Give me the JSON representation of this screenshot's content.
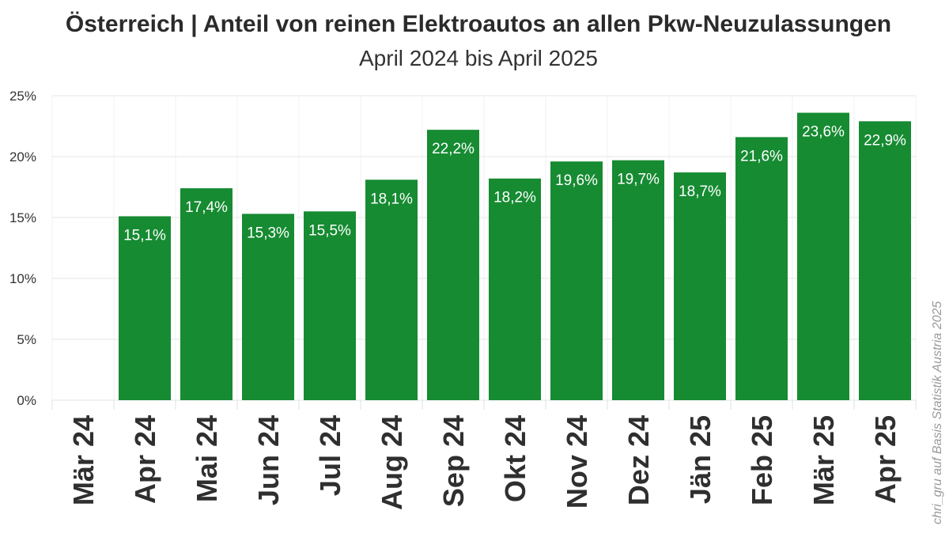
{
  "chart_data": {
    "type": "bar",
    "title": "Österreich | Anteil von reinen Elektroautos an allen Pkw-Neuzulassungen",
    "subtitle": "April 2024 bis April 2025",
    "categories": [
      "Mär 24",
      "Apr 24",
      "Mai 24",
      "Jun 24",
      "Jul 24",
      "Aug 24",
      "Sep 24",
      "Okt 24",
      "Nov 24",
      "Dez 24",
      "Jän 25",
      "Feb 25",
      "Mär 25",
      "Apr 25"
    ],
    "values": [
      null,
      15.1,
      17.4,
      15.3,
      15.5,
      18.1,
      22.2,
      18.2,
      19.6,
      19.7,
      18.7,
      21.6,
      23.6,
      22.9
    ],
    "data_labels": [
      "",
      "15,1%",
      "17,4%",
      "15,3%",
      "15,5%",
      "18,1%",
      "22,2%",
      "18,2%",
      "19,6%",
      "19,7%",
      "18,7%",
      "21,6%",
      "23,6%",
      "22,9%"
    ],
    "y_ticks": [
      0,
      5,
      10,
      15,
      20,
      25
    ],
    "y_tick_labels": [
      "0%",
      "5%",
      "10%",
      "15%",
      "20%",
      "25%"
    ],
    "ylim": [
      0,
      25
    ],
    "xlabel": "",
    "ylabel": "",
    "grid": true,
    "bar_color": "#168b32",
    "label_color": "#ffffff"
  },
  "source_note": "chri_gru auf Basis Statistik Austria 2025"
}
